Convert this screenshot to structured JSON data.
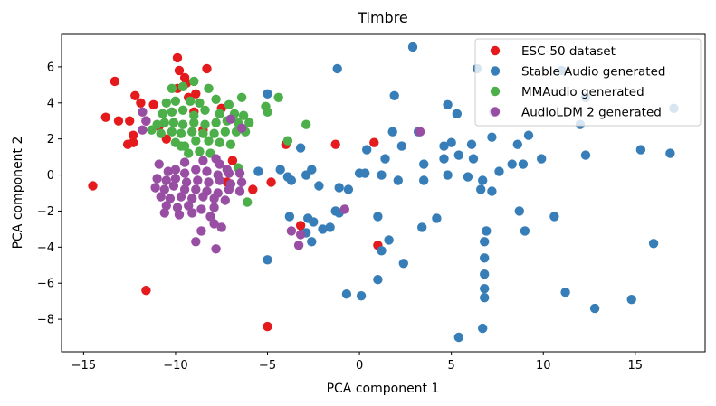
{
  "chart_data": {
    "type": "scatter",
    "title": "Timbre",
    "xlabel": "PCA component 1",
    "ylabel": "PCA component 2",
    "xlim": [
      -16.2,
      18.8
    ],
    "ylim": [
      -9.8,
      7.8
    ],
    "xticks": [
      -15,
      -10,
      -5,
      0,
      5,
      10,
      15
    ],
    "yticks": [
      -8,
      -6,
      -4,
      -2,
      0,
      2,
      4,
      6
    ],
    "xtick_labels": [
      "−15",
      "−10",
      "−5",
      "0",
      "5",
      "10",
      "15"
    ],
    "ytick_labels": [
      "−8",
      "−6",
      "−4",
      "−2",
      "0",
      "2",
      "4",
      "6"
    ],
    "grid": false,
    "legend_position": "top-right",
    "series": [
      {
        "name": "ESC-50 dataset",
        "color": "#e41a1c",
        "points": [
          [
            -9.9,
            6.5
          ],
          [
            -9.5,
            5.4
          ],
          [
            -9.4,
            5.1
          ],
          [
            -9.8,
            5.8
          ],
          [
            -8.3,
            5.9
          ],
          [
            -9.9,
            4.8
          ],
          [
            -9.3,
            4.3
          ],
          [
            -8.9,
            4.5
          ],
          [
            -13.3,
            5.2
          ],
          [
            -12.2,
            4.4
          ],
          [
            -11.9,
            4.0
          ],
          [
            -11.2,
            3.9
          ],
          [
            -13.8,
            3.2
          ],
          [
            -13.1,
            3.0
          ],
          [
            -12.5,
            3.0
          ],
          [
            -12.6,
            1.7
          ],
          [
            -12.3,
            1.8
          ],
          [
            -12.3,
            2.2
          ],
          [
            -11.6,
            3.0
          ],
          [
            -10.9,
            2.7
          ],
          [
            -10.5,
            2.0
          ],
          [
            -14.5,
            -0.6
          ],
          [
            -11.6,
            -6.4
          ],
          [
            -4.0,
            1.7
          ],
          [
            -4.8,
            -0.4
          ],
          [
            -5.8,
            -0.8
          ],
          [
            -7.2,
            -0.4
          ],
          [
            -6.9,
            0.8
          ],
          [
            -1.3,
            1.7
          ],
          [
            0.8,
            1.8
          ],
          [
            1.0,
            -3.9
          ],
          [
            -3.2,
            -2.8
          ],
          [
            -5.0,
            -8.4
          ],
          [
            -8.5,
            2.5
          ],
          [
            -9.0,
            3.5
          ],
          [
            -7.5,
            3.7
          ]
        ]
      },
      {
        "name": "Stable Audio generated",
        "color": "#377eb8",
        "points": [
          [
            2.9,
            7.1
          ],
          [
            6.4,
            5.9
          ],
          [
            -1.2,
            5.9
          ],
          [
            11.0,
            5.8
          ],
          [
            1.9,
            4.4
          ],
          [
            12.3,
            4.3
          ],
          [
            4.8,
            3.9
          ],
          [
            5.3,
            3.4
          ],
          [
            7.3,
            3.5
          ],
          [
            -5.0,
            4.5
          ],
          [
            9.2,
            2.2
          ],
          [
            12.0,
            2.8
          ],
          [
            17.1,
            3.7
          ],
          [
            15.3,
            1.4
          ],
          [
            16.9,
            1.2
          ],
          [
            1.8,
            2.4
          ],
          [
            3.2,
            2.4
          ],
          [
            2.3,
            1.6
          ],
          [
            -3.2,
            1.5
          ],
          [
            0.4,
            1.4
          ],
          [
            5.0,
            1.8
          ],
          [
            4.6,
            1.6
          ],
          [
            6.1,
            1.7
          ],
          [
            7.2,
            2.1
          ],
          [
            8.6,
            1.7
          ],
          [
            8.9,
            0.6
          ],
          [
            9.9,
            0.9
          ],
          [
            12.3,
            1.1
          ],
          [
            1.4,
            0.9
          ],
          [
            3.5,
            0.6
          ],
          [
            4.6,
            0.9
          ],
          [
            5.4,
            1.1
          ],
          [
            -5.5,
            0.2
          ],
          [
            -4.3,
            0.3
          ],
          [
            -3.9,
            -0.1
          ],
          [
            -2.9,
            0.0
          ],
          [
            -2.6,
            0.3
          ],
          [
            -3.7,
            -0.3
          ],
          [
            -2.2,
            -0.6
          ],
          [
            -1.1,
            -0.7
          ],
          [
            -0.6,
            -0.8
          ],
          [
            0.0,
            0.1
          ],
          [
            0.3,
            0.1
          ],
          [
            1.2,
            0.0
          ],
          [
            2.1,
            -0.3
          ],
          [
            3.5,
            -0.3
          ],
          [
            4.8,
            0.0
          ],
          [
            6.2,
            0.9
          ],
          [
            6.7,
            -0.3
          ],
          [
            7.2,
            -0.9
          ],
          [
            6.6,
            -0.8
          ],
          [
            7.6,
            0.2
          ],
          [
            8.3,
            0.6
          ],
          [
            5.9,
            -0.1
          ],
          [
            -1.3,
            -2.0
          ],
          [
            -1.1,
            -2.1
          ],
          [
            -1.6,
            -2.9
          ],
          [
            -2.8,
            -2.4
          ],
          [
            -2.5,
            -2.6
          ],
          [
            -3.8,
            -2.3
          ],
          [
            -2.9,
            -3.2
          ],
          [
            -2.6,
            -3.7
          ],
          [
            -2.0,
            -3.0
          ],
          [
            1.0,
            -2.3
          ],
          [
            3.4,
            -2.9
          ],
          [
            4.2,
            -2.4
          ],
          [
            1.2,
            -4.2
          ],
          [
            1.6,
            -3.6
          ],
          [
            2.4,
            -4.9
          ],
          [
            1.0,
            -5.8
          ],
          [
            -0.7,
            -6.6
          ],
          [
            0.1,
            -6.7
          ],
          [
            -5.0,
            -4.7
          ],
          [
            6.9,
            -3.1
          ],
          [
            6.8,
            -3.7
          ],
          [
            6.8,
            -4.6
          ],
          [
            6.8,
            -5.5
          ],
          [
            6.8,
            -6.3
          ],
          [
            6.8,
            -6.8
          ],
          [
            6.7,
            -8.5
          ],
          [
            5.4,
            -9.0
          ],
          [
            8.7,
            -2.0
          ],
          [
            9.0,
            -3.1
          ],
          [
            10.6,
            -2.3
          ],
          [
            11.2,
            -6.5
          ],
          [
            12.8,
            -7.4
          ],
          [
            14.8,
            -6.9
          ],
          [
            16.0,
            -3.8
          ]
        ]
      },
      {
        "name": "MMAudio generated",
        "color": "#4daf4a",
        "points": [
          [
            -10.2,
            4.8
          ],
          [
            -9.6,
            4.9
          ],
          [
            -9.0,
            5.2
          ],
          [
            -8.2,
            4.8
          ],
          [
            -6.4,
            4.3
          ],
          [
            -4.4,
            4.3
          ],
          [
            -5.0,
            3.5
          ],
          [
            -5.1,
            3.8
          ],
          [
            -10.5,
            4.0
          ],
          [
            -10.0,
            4.1
          ],
          [
            -9.2,
            4.1
          ],
          [
            -8.7,
            4.0
          ],
          [
            -7.8,
            4.2
          ],
          [
            -7.1,
            3.9
          ],
          [
            -10.7,
            3.4
          ],
          [
            -10.2,
            3.5
          ],
          [
            -9.6,
            3.6
          ],
          [
            -9.0,
            3.3
          ],
          [
            -8.4,
            3.6
          ],
          [
            -7.6,
            3.4
          ],
          [
            -6.8,
            3.4
          ],
          [
            -6.3,
            3.3
          ],
          [
            -11.0,
            2.8
          ],
          [
            -10.6,
            2.9
          ],
          [
            -10.1,
            2.9
          ],
          [
            -9.6,
            2.8
          ],
          [
            -9.0,
            2.9
          ],
          [
            -8.4,
            2.8
          ],
          [
            -7.8,
            2.9
          ],
          [
            -7.2,
            3.0
          ],
          [
            -6.6,
            2.9
          ],
          [
            -6.0,
            2.9
          ],
          [
            -11.3,
            2.5
          ],
          [
            -10.8,
            2.3
          ],
          [
            -10.2,
            2.4
          ],
          [
            -9.7,
            2.3
          ],
          [
            -9.1,
            2.4
          ],
          [
            -8.5,
            2.3
          ],
          [
            -7.9,
            2.3
          ],
          [
            -7.3,
            2.4
          ],
          [
            -6.7,
            2.4
          ],
          [
            -6.2,
            2.4
          ],
          [
            -10.0,
            1.8
          ],
          [
            -9.5,
            1.6
          ],
          [
            -8.9,
            1.9
          ],
          [
            -8.2,
            1.9
          ],
          [
            -7.6,
            1.8
          ],
          [
            -7.0,
            1.7
          ],
          [
            -9.3,
            1.2
          ],
          [
            -8.7,
            1.3
          ],
          [
            -8.1,
            1.2
          ],
          [
            -9.7,
            1.6
          ],
          [
            -2.9,
            2.8
          ],
          [
            -3.9,
            1.9
          ],
          [
            -6.6,
            0.4
          ],
          [
            -6.1,
            -1.5
          ]
        ]
      },
      {
        "name": "AudioLDM 2 generated",
        "color": "#984ea3",
        "points": [
          [
            -11.8,
            3.5
          ],
          [
            -11.6,
            3.0
          ],
          [
            -11.8,
            2.5
          ],
          [
            -7.0,
            3.1
          ],
          [
            -6.4,
            2.6
          ],
          [
            3.3,
            2.4
          ],
          [
            -7.6,
            0.6
          ],
          [
            -7.2,
            0.3
          ],
          [
            -10.4,
            0.2
          ],
          [
            -10.0,
            0.3
          ],
          [
            -9.5,
            0.1
          ],
          [
            -8.9,
            0.3
          ],
          [
            -8.3,
            0.2
          ],
          [
            -7.7,
            0.0
          ],
          [
            -7.1,
            0.1
          ],
          [
            -6.5,
            0.1
          ],
          [
            -11.0,
            -0.2
          ],
          [
            -10.5,
            -0.3
          ],
          [
            -10.0,
            -0.2
          ],
          [
            -9.4,
            -0.4
          ],
          [
            -8.8,
            -0.3
          ],
          [
            -8.2,
            -0.4
          ],
          [
            -7.6,
            -0.3
          ],
          [
            -7.0,
            -0.5
          ],
          [
            -6.4,
            -0.4
          ],
          [
            -11.1,
            -0.7
          ],
          [
            -10.6,
            -0.8
          ],
          [
            -10.1,
            -0.6
          ],
          [
            -9.5,
            -0.8
          ],
          [
            -8.9,
            -0.8
          ],
          [
            -8.3,
            -0.9
          ],
          [
            -7.7,
            -1.0
          ],
          [
            -7.1,
            -0.8
          ],
          [
            -6.5,
            -0.9
          ],
          [
            -10.8,
            -1.2
          ],
          [
            -10.3,
            -1.3
          ],
          [
            -9.7,
            -1.2
          ],
          [
            -9.1,
            -1.3
          ],
          [
            -8.5,
            -1.2
          ],
          [
            -7.9,
            -1.3
          ],
          [
            -7.3,
            -1.4
          ],
          [
            -10.5,
            -1.7
          ],
          [
            -9.9,
            -1.8
          ],
          [
            -9.3,
            -1.7
          ],
          [
            -8.6,
            -1.9
          ],
          [
            -7.9,
            -1.8
          ],
          [
            -10.6,
            -2.1
          ],
          [
            -9.8,
            -2.2
          ],
          [
            -9.1,
            -2.1
          ],
          [
            -8.1,
            -2.3
          ],
          [
            -7.9,
            -2.7
          ],
          [
            -8.6,
            -3.1
          ],
          [
            -7.5,
            -2.9
          ],
          [
            -7.8,
            -4.1
          ],
          [
            -8.9,
            -3.7
          ],
          [
            -3.7,
            -3.1
          ],
          [
            -3.2,
            -3.3
          ],
          [
            -3.3,
            -3.9
          ],
          [
            -0.8,
            -1.9
          ],
          [
            -9.5,
            0.7
          ],
          [
            -8.5,
            0.8
          ],
          [
            -7.8,
            0.9
          ],
          [
            -10.9,
            0.6
          ]
        ]
      }
    ]
  }
}
